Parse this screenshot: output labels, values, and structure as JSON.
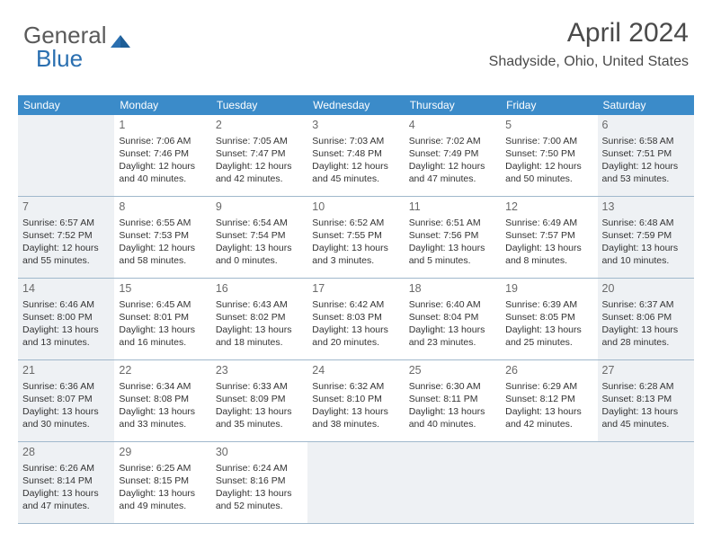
{
  "logo": {
    "part1": "General",
    "part2": "Blue"
  },
  "title": "April 2024",
  "location": "Shadyside, Ohio, United States",
  "colors": {
    "header_bg": "#3b8bc9",
    "header_text": "#ffffff",
    "shaded_bg": "#eef1f4",
    "border": "#a0b8cc",
    "text": "#333333",
    "daynum": "#6a6a6a",
    "logo_gray": "#5a5a5a",
    "logo_blue": "#2a6fb0"
  },
  "daysOfWeek": [
    "Sunday",
    "Monday",
    "Tuesday",
    "Wednesday",
    "Thursday",
    "Friday",
    "Saturday"
  ],
  "weeks": [
    [
      {
        "empty": true,
        "shaded": true
      },
      {
        "num": "1",
        "sunrise": "7:06 AM",
        "sunset": "7:46 PM",
        "daylight": "12 hours and 40 minutes."
      },
      {
        "num": "2",
        "sunrise": "7:05 AM",
        "sunset": "7:47 PM",
        "daylight": "12 hours and 42 minutes."
      },
      {
        "num": "3",
        "sunrise": "7:03 AM",
        "sunset": "7:48 PM",
        "daylight": "12 hours and 45 minutes."
      },
      {
        "num": "4",
        "sunrise": "7:02 AM",
        "sunset": "7:49 PM",
        "daylight": "12 hours and 47 minutes."
      },
      {
        "num": "5",
        "sunrise": "7:00 AM",
        "sunset": "7:50 PM",
        "daylight": "12 hours and 50 minutes."
      },
      {
        "num": "6",
        "sunrise": "6:58 AM",
        "sunset": "7:51 PM",
        "daylight": "12 hours and 53 minutes.",
        "shaded": true
      }
    ],
    [
      {
        "num": "7",
        "sunrise": "6:57 AM",
        "sunset": "7:52 PM",
        "daylight": "12 hours and 55 minutes.",
        "shaded": true
      },
      {
        "num": "8",
        "sunrise": "6:55 AM",
        "sunset": "7:53 PM",
        "daylight": "12 hours and 58 minutes."
      },
      {
        "num": "9",
        "sunrise": "6:54 AM",
        "sunset": "7:54 PM",
        "daylight": "13 hours and 0 minutes."
      },
      {
        "num": "10",
        "sunrise": "6:52 AM",
        "sunset": "7:55 PM",
        "daylight": "13 hours and 3 minutes."
      },
      {
        "num": "11",
        "sunrise": "6:51 AM",
        "sunset": "7:56 PM",
        "daylight": "13 hours and 5 minutes."
      },
      {
        "num": "12",
        "sunrise": "6:49 AM",
        "sunset": "7:57 PM",
        "daylight": "13 hours and 8 minutes."
      },
      {
        "num": "13",
        "sunrise": "6:48 AM",
        "sunset": "7:59 PM",
        "daylight": "13 hours and 10 minutes.",
        "shaded": true
      }
    ],
    [
      {
        "num": "14",
        "sunrise": "6:46 AM",
        "sunset": "8:00 PM",
        "daylight": "13 hours and 13 minutes.",
        "shaded": true
      },
      {
        "num": "15",
        "sunrise": "6:45 AM",
        "sunset": "8:01 PM",
        "daylight": "13 hours and 16 minutes."
      },
      {
        "num": "16",
        "sunrise": "6:43 AM",
        "sunset": "8:02 PM",
        "daylight": "13 hours and 18 minutes."
      },
      {
        "num": "17",
        "sunrise": "6:42 AM",
        "sunset": "8:03 PM",
        "daylight": "13 hours and 20 minutes."
      },
      {
        "num": "18",
        "sunrise": "6:40 AM",
        "sunset": "8:04 PM",
        "daylight": "13 hours and 23 minutes."
      },
      {
        "num": "19",
        "sunrise": "6:39 AM",
        "sunset": "8:05 PM",
        "daylight": "13 hours and 25 minutes."
      },
      {
        "num": "20",
        "sunrise": "6:37 AM",
        "sunset": "8:06 PM",
        "daylight": "13 hours and 28 minutes.",
        "shaded": true
      }
    ],
    [
      {
        "num": "21",
        "sunrise": "6:36 AM",
        "sunset": "8:07 PM",
        "daylight": "13 hours and 30 minutes.",
        "shaded": true
      },
      {
        "num": "22",
        "sunrise": "6:34 AM",
        "sunset": "8:08 PM",
        "daylight": "13 hours and 33 minutes."
      },
      {
        "num": "23",
        "sunrise": "6:33 AM",
        "sunset": "8:09 PM",
        "daylight": "13 hours and 35 minutes."
      },
      {
        "num": "24",
        "sunrise": "6:32 AM",
        "sunset": "8:10 PM",
        "daylight": "13 hours and 38 minutes."
      },
      {
        "num": "25",
        "sunrise": "6:30 AM",
        "sunset": "8:11 PM",
        "daylight": "13 hours and 40 minutes."
      },
      {
        "num": "26",
        "sunrise": "6:29 AM",
        "sunset": "8:12 PM",
        "daylight": "13 hours and 42 minutes."
      },
      {
        "num": "27",
        "sunrise": "6:28 AM",
        "sunset": "8:13 PM",
        "daylight": "13 hours and 45 minutes.",
        "shaded": true
      }
    ],
    [
      {
        "num": "28",
        "sunrise": "6:26 AM",
        "sunset": "8:14 PM",
        "daylight": "13 hours and 47 minutes.",
        "shaded": true
      },
      {
        "num": "29",
        "sunrise": "6:25 AM",
        "sunset": "8:15 PM",
        "daylight": "13 hours and 49 minutes."
      },
      {
        "num": "30",
        "sunrise": "6:24 AM",
        "sunset": "8:16 PM",
        "daylight": "13 hours and 52 minutes."
      },
      {
        "empty": true,
        "shaded": true
      },
      {
        "empty": true,
        "shaded": true
      },
      {
        "empty": true,
        "shaded": true
      },
      {
        "empty": true,
        "shaded": true
      }
    ]
  ],
  "labels": {
    "sunrise": "Sunrise:",
    "sunset": "Sunset:",
    "daylight": "Daylight:"
  }
}
